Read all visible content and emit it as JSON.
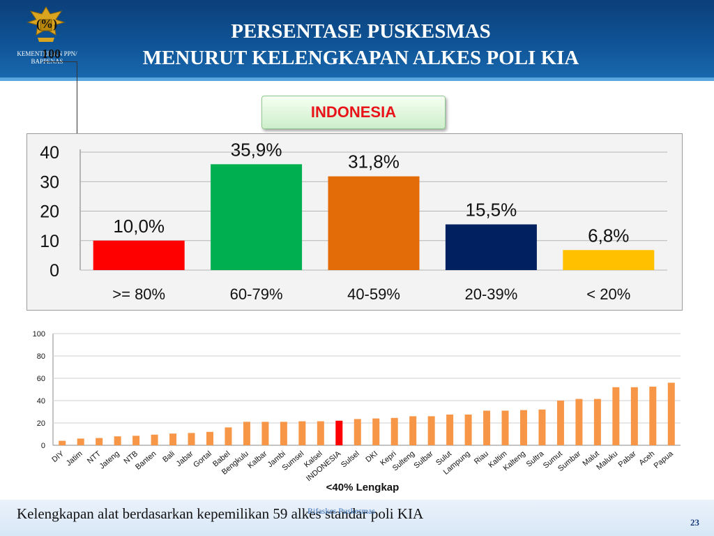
{
  "header": {
    "title_line1": "PERSENTASE PUSKESMAS",
    "title_line2": "MENURUT KELENGKAPAN ALKES POLI KIA",
    "ministry_line1": "KEMENTERIAN PPN/",
    "ministry_line2": "BAPPENAS",
    "unit": "(%)",
    "unit_max": "100"
  },
  "badge": {
    "label": "INDONESIA"
  },
  "colors": {
    "header": "#0f5496",
    "bar_orange": "#f79646",
    "bar_highlight": "#ff0000"
  },
  "chart_data": [
    {
      "type": "bar",
      "categories": [
        ">= 80%",
        "60-79%",
        "40-59%",
        "20-39%",
        "< 20%"
      ],
      "values": [
        10.0,
        35.9,
        31.8,
        15.5,
        6.8
      ],
      "value_labels": [
        "10,0%",
        "35,9%",
        "31,8%",
        "15,5%",
        "6,8%"
      ],
      "colors": [
        "#ff0000",
        "#00b050",
        "#e36c09",
        "#002060",
        "#ffc000"
      ],
      "yticks": [
        "0",
        "10",
        "20",
        "30",
        "40"
      ],
      "ylim": [
        0,
        40
      ],
      "grid": true
    },
    {
      "type": "bar",
      "categories": [
        "DIY",
        "Jatim",
        "NTT",
        "Jateng",
        "NTB",
        "Banten",
        "Bali",
        "Jabar",
        "Gortal",
        "Babel",
        "Bengkulu",
        "Kalbar",
        "Jambi",
        "Sumsel",
        "Kalsel",
        "INDONESIA",
        "Sulsel",
        "DKI",
        "Kepri",
        "Sulteng",
        "Sulbar",
        "Sulut",
        "Lampung",
        "Riau",
        "Kaltim",
        "Kalteng",
        "Sultra",
        "Sumut",
        "Sumbar",
        "Malut",
        "Maluku",
        "Pabar",
        "Aceh",
        "Papua"
      ],
      "values": [
        4,
        6,
        6.5,
        8,
        8.5,
        9.5,
        10.5,
        11,
        12,
        16,
        21,
        21,
        21,
        21.5,
        21.5,
        22,
        23.5,
        24,
        24.5,
        26,
        26,
        27.5,
        27.5,
        31,
        31,
        31.5,
        32,
        40,
        41.5,
        41.5,
        52,
        52,
        52.5,
        56
      ],
      "highlight": "INDONESIA",
      "yticks": [
        "0",
        "20",
        "40",
        "60",
        "80",
        "100"
      ],
      "ylim": [
        0,
        100
      ],
      "grid": true,
      "xlabel": "<40% Lengkap"
    }
  ],
  "footer": {
    "caption": "Kelengkapan alat berdasarkan kepemilikan 59 alkes standar poli KIA",
    "source": "Rifaskes Puskesmas",
    "page": "23"
  }
}
